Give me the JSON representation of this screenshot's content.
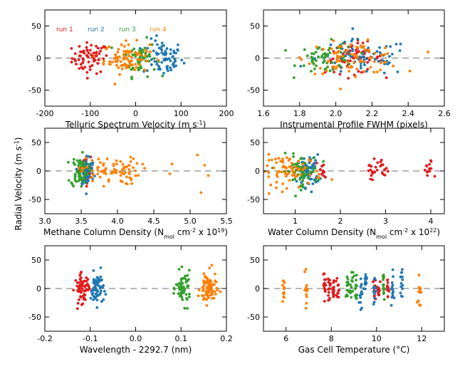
{
  "figure": {
    "ylabel": "Radial Velocity  (m s",
    "ylabel_sup": "-1",
    "ylabel_end": ")"
  },
  "colors": {
    "run1": "#e31a1c",
    "run2": "#1f78b4",
    "run3": "#33a02c",
    "run4": "#ff7f00",
    "zero_line": "#8c8c8c"
  },
  "chart_data": [
    {
      "type": "scatter",
      "panel": "telluric",
      "xlabel": "Telluric Spectrum Velocity  (m s",
      "xlabel_sup": "-1",
      "xlabel_end": ")",
      "xlim": [
        -200,
        200
      ],
      "ylim": [
        -75,
        75
      ],
      "xticks": [
        "-200",
        "-100",
        "0",
        "100",
        "200"
      ],
      "yticks": [
        "-50",
        "0",
        "50"
      ],
      "legend": [
        "run 1",
        "run 2",
        "run 3",
        "run 4"
      ],
      "legend_position": "top-left",
      "series": [
        {
          "name": "run 1",
          "cluster": {
            "x_center": -100,
            "x_spread": 20,
            "y_spread": 12,
            "n": 70
          }
        },
        {
          "name": "run 2",
          "cluster": {
            "x_center": 60,
            "x_spread": 22,
            "y_spread": 14,
            "n": 70
          }
        },
        {
          "name": "run 3",
          "cluster": {
            "x_center": 10,
            "x_spread": 18,
            "y_spread": 14,
            "n": 60
          }
        },
        {
          "name": "run 4",
          "cluster": {
            "x_center": -20,
            "x_spread": 25,
            "y_spread": 12,
            "n": 80
          }
        }
      ]
    },
    {
      "type": "scatter",
      "panel": "fwhm",
      "xlabel": "Instrumental Profile FWHM  (pixels)",
      "xlim": [
        1.6,
        2.6
      ],
      "ylim": [
        -75,
        75
      ],
      "xticks": [
        "1.6",
        "1.8",
        "2.0",
        "2.2",
        "2.4",
        "2.6"
      ],
      "yticks": [
        "-50",
        "0",
        "50"
      ],
      "series": [
        {
          "name": "run 1",
          "cluster": {
            "x_center": 2.1,
            "x_spread": 0.08,
            "y_spread": 12,
            "n": 70
          }
        },
        {
          "name": "run 2",
          "cluster": {
            "x_center": 2.15,
            "x_spread": 0.13,
            "y_spread": 14,
            "n": 70
          }
        },
        {
          "name": "run 3",
          "cluster": {
            "x_center": 1.95,
            "x_spread": 0.08,
            "y_spread": 12,
            "n": 60
          }
        },
        {
          "name": "run 4",
          "cluster": {
            "x_center": 2.1,
            "x_spread": 0.13,
            "y_spread": 12,
            "n": 80
          }
        }
      ]
    },
    {
      "type": "scatter",
      "panel": "methane",
      "xlabel": "Methane Column Density  (N",
      "xlabel_sub": "mol",
      "xlabel_mid": " cm",
      "xlabel_sup": "-2",
      "xlabel_mid2": " x 10",
      "xlabel_sup2": "19",
      "xlabel_end": ")",
      "xlim": [
        3.0,
        5.5
      ],
      "ylim": [
        -75,
        75
      ],
      "xticks": [
        "3.0",
        "3.5",
        "4.0",
        "4.5",
        "5.0",
        "5.5"
      ],
      "yticks": [
        "-50",
        "0",
        "50"
      ],
      "series": [
        {
          "name": "run 1",
          "cluster": {
            "x_center": 3.55,
            "x_spread": 0.04,
            "y_spread": 12,
            "n": 70
          }
        },
        {
          "name": "run 2",
          "cluster": {
            "x_center": 3.58,
            "x_spread": 0.05,
            "y_spread": 14,
            "n": 70
          }
        },
        {
          "name": "run 3",
          "cluster": {
            "x_center": 3.48,
            "x_spread": 0.06,
            "y_spread": 14,
            "n": 60
          }
        },
        {
          "name": "run 4",
          "cluster": {
            "x_center": 3.9,
            "x_spread": 0.2,
            "y_spread": 12,
            "n": 80,
            "outliers": [
              [
                4.75,
                12
              ],
              [
                4.72,
                -5
              ],
              [
                5.1,
                28
              ],
              [
                5.2,
                10
              ],
              [
                5.25,
                -8
              ],
              [
                5.15,
                -38
              ]
            ]
          }
        }
      ]
    },
    {
      "type": "scatter",
      "panel": "water",
      "xlabel": "Water Column Density  (N",
      "xlabel_sub": "mol",
      "xlabel_mid": " cm",
      "xlabel_sup": "-2",
      "xlabel_mid2": " x 10",
      "xlabel_sup2": "22",
      "xlabel_end": ")",
      "xlim": [
        0.3,
        4.3
      ],
      "ylim": [
        -75,
        75
      ],
      "xticks": [
        "1",
        "2",
        "3",
        "4"
      ],
      "xtick_values": [
        1,
        2,
        3,
        4
      ],
      "yticks": [
        "-50",
        "0",
        "50"
      ],
      "series": [
        {
          "name": "run 1",
          "cluster": {
            "x_center": 2.9,
            "x_spread": 0.35,
            "y_spread": 10,
            "n": 50,
            "groups": [
              1.6,
              2.7,
              2.95,
              3.95
            ]
          }
        },
        {
          "name": "run 2",
          "cluster": {
            "x_center": 1.3,
            "x_spread": 0.12,
            "y_spread": 14,
            "n": 70
          }
        },
        {
          "name": "run 3",
          "cluster": {
            "x_center": 1.1,
            "x_spread": 0.2,
            "y_spread": 14,
            "n": 60
          }
        },
        {
          "name": "run 4",
          "cluster": {
            "x_center": 0.9,
            "x_spread": 0.35,
            "y_spread": 14,
            "n": 80
          }
        }
      ]
    },
    {
      "type": "scatter",
      "panel": "wavelength",
      "xlabel": "Wavelength - 2292.7  (nm)",
      "xlim": [
        -0.2,
        0.2
      ],
      "ylim": [
        -75,
        75
      ],
      "xticks": [
        "-0.2",
        "-0.1",
        "0.0",
        "0.1",
        "0.2"
      ],
      "yticks": [
        "-50",
        "0",
        "50"
      ],
      "series": [
        {
          "name": "run 1",
          "cluster": {
            "x_center": -0.118,
            "x_spread": 0.008,
            "y_spread": 12,
            "n": 70
          }
        },
        {
          "name": "run 2",
          "cluster": {
            "x_center": -0.085,
            "x_spread": 0.007,
            "y_spread": 14,
            "n": 60
          }
        },
        {
          "name": "run 3",
          "cluster": {
            "x_center": 0.105,
            "x_spread": 0.008,
            "y_spread": 14,
            "n": 60
          }
        },
        {
          "name": "run 4",
          "cluster": {
            "x_center": 0.16,
            "x_spread": 0.009,
            "y_spread": 14,
            "n": 80
          }
        }
      ]
    },
    {
      "type": "scatter",
      "panel": "gascell",
      "xlabel": "Gas Cell Temperature  (°C)",
      "xlim": [
        5,
        13
      ],
      "ylim": [
        -75,
        75
      ],
      "xticks": [
        "6",
        "8",
        "10",
        "12"
      ],
      "xtick_values": [
        6,
        8,
        10,
        12
      ],
      "yticks": [
        "-50",
        "0",
        "50"
      ],
      "series": [
        {
          "name": "run 1",
          "strips": [
            7.7,
            7.9,
            8.1,
            8.3,
            9.9,
            10.1,
            10.5
          ],
          "y_spread": 10
        },
        {
          "name": "run 2",
          "strips": [
            9.3,
            9.5,
            9.9,
            10.7,
            11.1
          ],
          "y_spread": 16
        },
        {
          "name": "run 3",
          "strips": [
            8.7,
            8.9,
            9.1,
            10.3
          ],
          "y_spread": 14
        },
        {
          "name": "run 4",
          "strips": [
            5.9,
            6.9,
            11.9
          ],
          "y_spread": 16
        }
      ]
    }
  ]
}
